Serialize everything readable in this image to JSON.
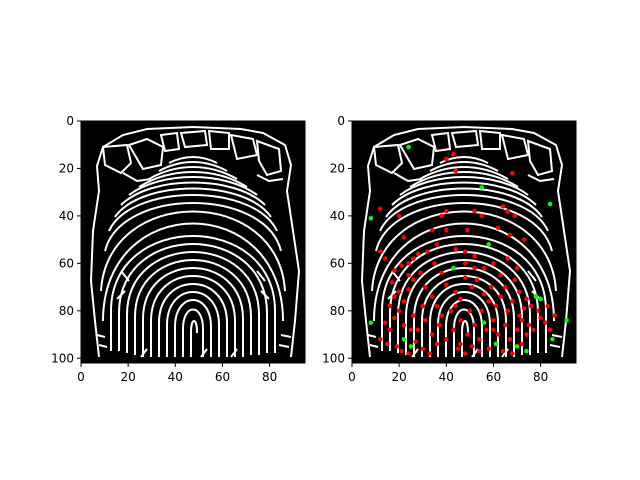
{
  "figure": {
    "background": "#ffffff",
    "panels": [
      {
        "id": "left",
        "image_type": "skeletonized fingerprint",
        "image_background": "#000000",
        "ridge_color": "#ffffff",
        "x_ticks": [
          "0",
          "20",
          "40",
          "60",
          "80"
        ],
        "y_ticks": [
          "0",
          "20",
          "40",
          "60",
          "80",
          "100"
        ],
        "x_range": [
          0,
          95
        ],
        "y_range": [
          102,
          0
        ]
      },
      {
        "id": "right",
        "image_type": "skeletonized fingerprint with minutiae markers",
        "image_background": "#000000",
        "ridge_color": "#ffffff",
        "x_ticks": [
          "0",
          "20",
          "40",
          "60",
          "80"
        ],
        "y_ticks": [
          "0",
          "20",
          "40",
          "60",
          "80",
          "100"
        ],
        "x_range": [
          0,
          95
        ],
        "y_range": [
          102,
          0
        ],
        "markers": {
          "bifurcation_color": "#ff0000",
          "termination_color": "#00ff00",
          "green": [
            [
              24,
              11
            ],
            [
              55,
              28
            ],
            [
              84,
              35
            ],
            [
              8,
              41
            ],
            [
              58,
              52
            ],
            [
              43,
              62
            ],
            [
              80,
              75
            ],
            [
              78,
              74
            ],
            [
              8,
              85
            ],
            [
              91,
              84
            ],
            [
              85,
              92
            ],
            [
              22,
              92
            ],
            [
              25,
              95
            ],
            [
              61,
              94
            ],
            [
              70,
              95
            ],
            [
              74,
              97
            ],
            [
              56,
              85
            ]
          ],
          "red": [
            [
              40,
              16
            ],
            [
              43,
              14
            ],
            [
              44,
              21
            ],
            [
              68,
              22
            ],
            [
              12,
              37
            ],
            [
              20,
              40
            ],
            [
              38,
              40
            ],
            [
              40,
              38
            ],
            [
              52,
              38
            ],
            [
              55,
              40
            ],
            [
              64,
              36
            ],
            [
              66,
              38
            ],
            [
              69,
              40
            ],
            [
              12,
              55
            ],
            [
              14,
              58
            ],
            [
              22,
              49
            ],
            [
              34,
              46
            ],
            [
              40,
              46
            ],
            [
              49,
              46
            ],
            [
              62,
              45
            ],
            [
              67,
              48
            ],
            [
              73,
              50
            ],
            [
              18,
              63
            ],
            [
              21,
              61
            ],
            [
              24,
              60
            ],
            [
              26,
              58
            ],
            [
              28,
              56
            ],
            [
              32,
              55
            ],
            [
              36,
              52
            ],
            [
              44,
              54
            ],
            [
              48,
              55
            ],
            [
              52,
              57
            ],
            [
              56,
              62
            ],
            [
              60,
              60
            ],
            [
              63,
              65
            ],
            [
              65,
              70
            ],
            [
              69,
              67
            ],
            [
              17,
              68
            ],
            [
              18,
              74
            ],
            [
              16,
              78
            ],
            [
              20,
              72
            ],
            [
              22,
              76
            ],
            [
              24,
              71
            ],
            [
              26,
              67
            ],
            [
              29,
              64
            ],
            [
              31,
              70
            ],
            [
              34,
              74
            ],
            [
              36,
              78
            ],
            [
              38,
              64
            ],
            [
              40,
              69
            ],
            [
              44,
              72
            ],
            [
              46,
              75
            ],
            [
              48,
              66
            ],
            [
              51,
              70
            ],
            [
              53,
              67
            ],
            [
              56,
              73
            ],
            [
              58,
              76
            ],
            [
              61,
              78
            ],
            [
              63,
              74
            ],
            [
              66,
              80
            ],
            [
              68,
              76
            ],
            [
              71,
              82
            ],
            [
              73,
              79
            ],
            [
              76,
              78
            ],
            [
              79,
              80
            ],
            [
              83,
              78
            ],
            [
              86,
              82
            ],
            [
              14,
              85
            ],
            [
              16,
              88
            ],
            [
              18,
              83
            ],
            [
              20,
              80
            ],
            [
              22,
              86
            ],
            [
              26,
              82
            ],
            [
              28,
              88
            ],
            [
              31,
              84
            ],
            [
              34,
              90
            ],
            [
              37,
              86
            ],
            [
              40,
              92
            ],
            [
              43,
              88
            ],
            [
              46,
              94
            ],
            [
              49,
              90
            ],
            [
              52,
              86
            ],
            [
              54,
              92
            ],
            [
              57,
              88
            ],
            [
              60,
              84
            ],
            [
              62,
              90
            ],
            [
              65,
              86
            ],
            [
              67,
              92
            ],
            [
              70,
              88
            ],
            [
              72,
              84
            ],
            [
              74,
              90
            ],
            [
              19,
              95
            ],
            [
              21,
              97
            ],
            [
              24,
              98
            ],
            [
              27,
              93
            ],
            [
              30,
              96
            ],
            [
              33,
              98
            ],
            [
              36,
              94
            ],
            [
              45,
              96
            ],
            [
              48,
              98
            ],
            [
              51,
              95
            ],
            [
              54,
              97
            ],
            [
              58,
              96
            ],
            [
              64,
              97
            ],
            [
              68,
              98
            ],
            [
              72,
              94
            ],
            [
              38,
              82
            ],
            [
              42,
              80
            ],
            [
              46,
              84
            ],
            [
              50,
              80
            ],
            [
              55,
              80
            ],
            [
              59,
              70
            ],
            [
              44,
              78
            ],
            [
              30,
              78
            ],
            [
              25,
              88
            ],
            [
              60,
              88
            ],
            [
              75,
              86
            ],
            [
              82,
              85
            ],
            [
              84,
              88
            ],
            [
              71,
              72
            ],
            [
              74,
              75
            ],
            [
              66,
              58
            ],
            [
              70,
              62
            ],
            [
              48,
              60
            ],
            [
              52,
              62
            ],
            [
              35,
              60
            ],
            [
              24,
              65
            ],
            [
              80,
              83
            ],
            [
              77,
              88
            ],
            [
              12,
              92
            ],
            [
              15,
              94
            ]
          ]
        }
      }
    ]
  }
}
